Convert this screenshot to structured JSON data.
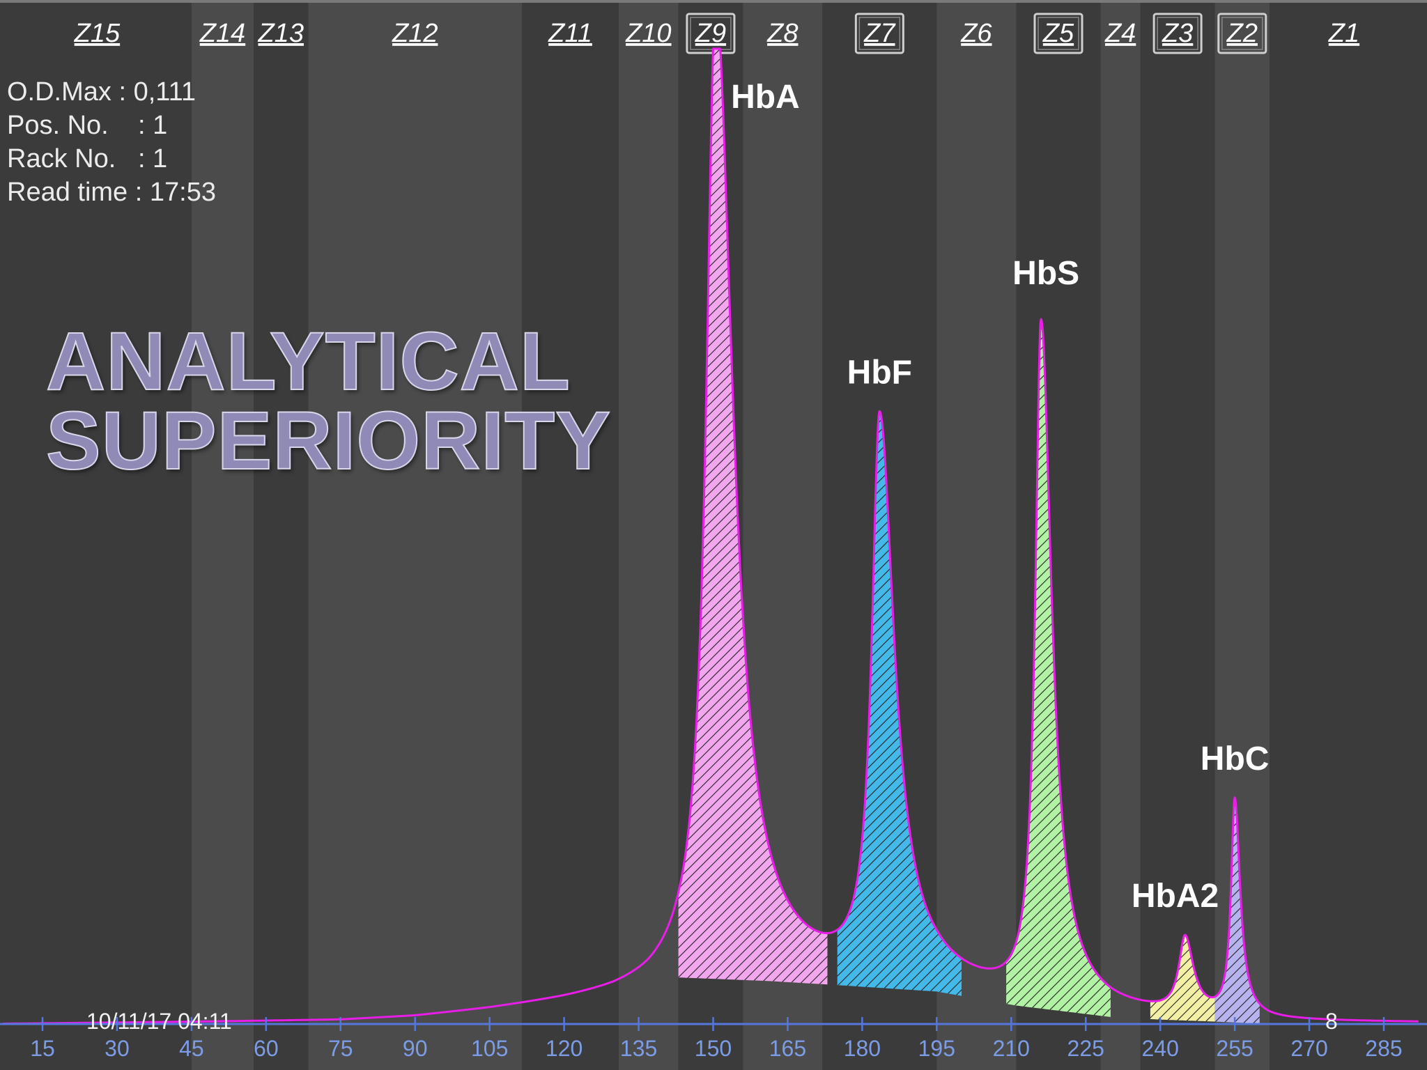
{
  "info": {
    "od_max": "O.D.Max : 0,111",
    "pos_no": "Pos. No.    : 1",
    "rack_no": "Rack No.   : 1",
    "read_time": "Read time : 17:53"
  },
  "headline": {
    "line1": "ANALYTICAL",
    "line2": "SUPERIORITY"
  },
  "footer": {
    "datetime": "10/11/17 04:11",
    "count": "8"
  },
  "colors": {
    "trace": "#e81ee8",
    "axis": "#5577dd",
    "tick_label": "#7d9ce6",
    "zone_light": "#4b4b4b",
    "zone_dark": "#3b3b3b",
    "peak_label": "#ffffff"
  },
  "chart_data": {
    "type": "area",
    "x_ticks": [
      15,
      30,
      45,
      60,
      75,
      90,
      105,
      120,
      135,
      150,
      165,
      180,
      195,
      210,
      225,
      240,
      255,
      270,
      285
    ],
    "xlim": [
      7,
      292
    ],
    "ylim": [
      0,
      0.111
    ],
    "grid": false,
    "legend": "none",
    "zones": [
      {
        "label": "Z15",
        "range": [
          7,
          45
        ],
        "boxed": false
      },
      {
        "label": "Z14",
        "range": [
          45,
          57.5
        ],
        "boxed": false
      },
      {
        "label": "Z13",
        "range": [
          57.5,
          68.5
        ],
        "boxed": false
      },
      {
        "label": "Z12",
        "range": [
          68.5,
          111.5
        ],
        "boxed": false
      },
      {
        "label": "Z11",
        "range": [
          111.5,
          131
        ],
        "boxed": false
      },
      {
        "label": "Z10",
        "range": [
          131,
          143
        ],
        "boxed": false
      },
      {
        "label": "Z9",
        "range": [
          143,
          156
        ],
        "boxed": true
      },
      {
        "label": "Z8",
        "range": [
          156,
          172
        ],
        "boxed": false
      },
      {
        "label": "Z7",
        "range": [
          172,
          195
        ],
        "boxed": true
      },
      {
        "label": "Z6",
        "range": [
          195,
          211
        ],
        "boxed": false
      },
      {
        "label": "Z5",
        "range": [
          211,
          228
        ],
        "boxed": true
      },
      {
        "label": "Z4",
        "range": [
          228,
          236
        ],
        "boxed": false
      },
      {
        "label": "Z3",
        "range": [
          236,
          251
        ],
        "boxed": true
      },
      {
        "label": "Z2",
        "range": [
          251,
          262
        ],
        "boxed": true
      },
      {
        "label": "Z1",
        "range": [
          262,
          292
        ],
        "boxed": false
      }
    ],
    "baseline": [
      [
        7,
        0.0
      ],
      [
        45,
        0.0002
      ],
      [
        75,
        0.0004
      ],
      [
        90,
        0.0008
      ],
      [
        105,
        0.0016
      ],
      [
        120,
        0.0026
      ],
      [
        130,
        0.0034
      ],
      [
        137,
        0.0042
      ],
      [
        143,
        0.0053
      ],
      [
        161,
        0.0049
      ],
      [
        173,
        0.0045
      ],
      [
        195,
        0.0037
      ],
      [
        211,
        0.0021
      ],
      [
        230,
        0.0008
      ],
      [
        240,
        0.0005
      ],
      [
        250,
        0.0003
      ],
      [
        262,
        0.0
      ],
      [
        292,
        0.0
      ]
    ],
    "peaks": [
      {
        "name": "HbA",
        "center": 150.5,
        "height": 0.111,
        "width_left": 2.3,
        "width_right": 4.2,
        "fill": "#f2a6ee",
        "range": [
          143,
          173
        ]
      },
      {
        "name": "HbF",
        "center": 183.5,
        "height": 0.0637,
        "width_left": 1.9,
        "width_right": 3.6,
        "fill": "#44b9e9",
        "range": [
          175,
          200
        ]
      },
      {
        "name": "HbS",
        "center": 216.0,
        "height": 0.0772,
        "width_left": 1.4,
        "width_right": 2.6,
        "fill": "#b2f2a4",
        "range": [
          209,
          230
        ]
      },
      {
        "name": "HbA2",
        "center": 245.0,
        "height": 0.0085,
        "width_left": 1.5,
        "width_right": 2.0,
        "fill": "#f3f0a6",
        "range": [
          238,
          251
        ]
      },
      {
        "name": "HbC",
        "center": 255.0,
        "height": 0.0246,
        "width_left": 0.9,
        "width_right": 1.3,
        "fill": "#b6b3ee",
        "range": [
          251,
          260
        ]
      }
    ]
  }
}
